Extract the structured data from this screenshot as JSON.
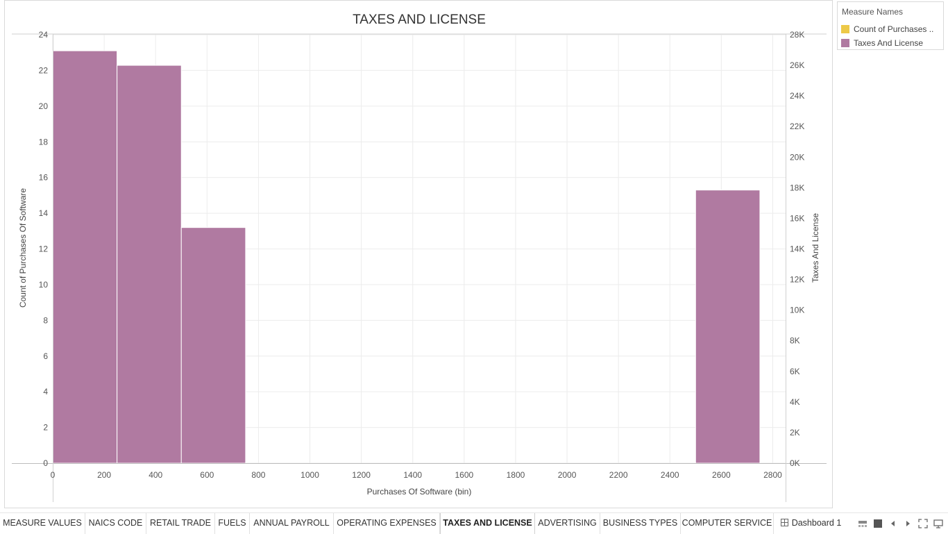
{
  "chart_data": {
    "type": "bar",
    "title": "TAXES AND LICENSE",
    "xlabel": "Purchases Of Software (bin)",
    "ylabel_left": "Count of Purchases Of Software",
    "ylabel_right": "Taxes And License",
    "x_ticks": [
      0,
      200,
      400,
      600,
      800,
      1000,
      1200,
      1400,
      1600,
      1800,
      2000,
      2200,
      2400,
      2600,
      2800
    ],
    "xlim": [
      0,
      2850
    ],
    "bin_width": 250,
    "bins_start": [
      0,
      250,
      500,
      2500
    ],
    "ylim_left": [
      0,
      24
    ],
    "ylim_right": [
      0,
      28000
    ],
    "y_left_ticks": [
      "0",
      "2",
      "4",
      "6",
      "8",
      "10",
      "12",
      "14",
      "16",
      "18",
      "20",
      "22",
      "24"
    ],
    "y_right_ticks": [
      "0K",
      "2K",
      "4K",
      "6K",
      "8K",
      "10K",
      "12K",
      "14K",
      "16K",
      "18K",
      "20K",
      "22K",
      "24K",
      "26K",
      "28K"
    ],
    "y_right_tick_values": [
      0,
      2000,
      4000,
      6000,
      8000,
      10000,
      12000,
      14000,
      16000,
      18000,
      20000,
      22000,
      24000,
      26000,
      28000
    ],
    "series": [
      {
        "name": "Taxes And License",
        "axis": "right",
        "color": "#b07aa1",
        "values": [
          26950,
          26000,
          15400,
          17850
        ]
      }
    ],
    "grid": true,
    "legend_position": "right"
  },
  "legend": {
    "title": "Measure Names",
    "items": [
      {
        "label": "Count of Purchases ..",
        "color": "#edc948"
      },
      {
        "label": "Taxes And License",
        "color": "#b07aa1"
      }
    ]
  },
  "tabs": [
    {
      "label": "MEASURE VALUES",
      "active": false
    },
    {
      "label": "NAICS CODE",
      "active": false
    },
    {
      "label": "RETAIL TRADE",
      "active": false
    },
    {
      "label": "FUELS",
      "active": false
    },
    {
      "label": "ANNUAL PAYROLL",
      "active": false
    },
    {
      "label": "OPERATING EXPENSES",
      "active": false
    },
    {
      "label": "TAXES AND LICENSE",
      "active": true
    },
    {
      "label": "ADVERTISING",
      "active": false
    },
    {
      "label": "BUSINESS TYPES",
      "active": false
    },
    {
      "label": "COMPUTER SERVICE",
      "active": false
    },
    {
      "label": "Dashboard 1",
      "active": false,
      "icon": "dashboard-icon"
    }
  ],
  "controls": [
    "filmstrip-icon",
    "tab-grid-icon",
    "prev-icon",
    "next-icon",
    "fullscreen-icon",
    "presentation-icon"
  ]
}
